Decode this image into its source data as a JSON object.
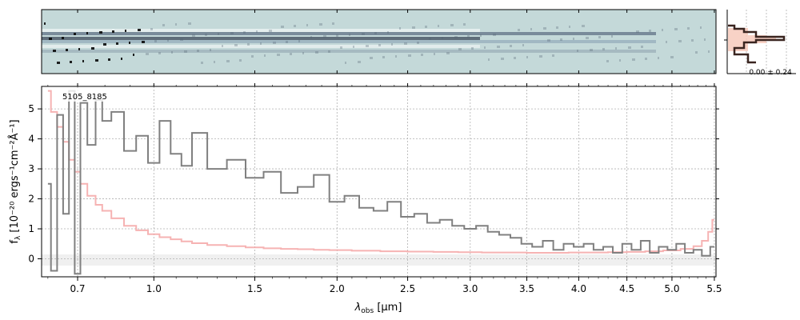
{
  "chart_data": {
    "type": "line",
    "object_label": "5105_8185",
    "xlabel_main": "λ",
    "xlabel_sub": "obs",
    "xlabel_unit": "[μm]",
    "ylabel_main": "f",
    "ylabel_sub": "λ",
    "ylabel_unit": "[10⁻²⁰ ergs⁻¹cm⁻²Å⁻¹]",
    "x_ticks": [
      "0.7",
      "1.0",
      "1.5",
      "2.0",
      "2.5",
      "3.0",
      "3.5",
      "4.0",
      "4.5",
      "5.0",
      "5.5"
    ],
    "x_tick_values": [
      0.7,
      1.0,
      1.5,
      2.0,
      2.5,
      3.0,
      3.5,
      4.0,
      4.5,
      5.0,
      5.5
    ],
    "y_ticks": [
      "0",
      "1",
      "2",
      "3",
      "4",
      "5"
    ],
    "ylim": [
      -0.6,
      5.75
    ],
    "x_scale": "power-law compressed (prism resolution grid)",
    "grid": true,
    "hist_label": "0.00 ± 0.24",
    "colors": {
      "flux": "#808080",
      "error": "#f4a6a6",
      "image": "#c4d9d9",
      "hist": "#6b3a2a",
      "hist_fill": "#f6c7b8"
    },
    "series": [
      {
        "role": "flux",
        "x": [
          0.6,
          0.62,
          0.64,
          0.66,
          0.68,
          0.7,
          0.72,
          0.75,
          0.78,
          0.8,
          0.85,
          0.9,
          0.95,
          1.0,
          1.05,
          1.1,
          1.15,
          1.2,
          1.3,
          1.4,
          1.5,
          1.6,
          1.7,
          1.8,
          1.9,
          2.0,
          2.1,
          2.2,
          2.3,
          2.4,
          2.5,
          2.6,
          2.7,
          2.8,
          2.9,
          3.0,
          3.1,
          3.2,
          3.3,
          3.4,
          3.5,
          3.6,
          3.7,
          3.8,
          3.9,
          4.0,
          4.1,
          4.2,
          4.3,
          4.4,
          4.5,
          4.6,
          4.7,
          4.8,
          4.9,
          5.0,
          5.1,
          5.2,
          5.3,
          5.4,
          5.5
        ],
        "y": [
          2.5,
          -0.4,
          4.8,
          1.5,
          5.6,
          -0.5,
          5.2,
          3.8,
          5.3,
          4.6,
          4.9,
          3.6,
          4.1,
          3.2,
          4.6,
          3.5,
          3.1,
          4.2,
          3.0,
          3.3,
          2.7,
          2.9,
          2.2,
          2.4,
          2.8,
          1.9,
          2.1,
          1.7,
          1.6,
          1.9,
          1.4,
          1.5,
          1.2,
          1.3,
          1.1,
          1.0,
          1.1,
          0.9,
          0.8,
          0.7,
          0.5,
          0.4,
          0.6,
          0.3,
          0.5,
          0.4,
          0.5,
          0.3,
          0.4,
          0.2,
          0.5,
          0.3,
          0.6,
          0.2,
          0.4,
          0.3,
          0.5,
          0.2,
          0.3,
          0.1,
          0.4
        ]
      },
      {
        "role": "error",
        "x": [
          0.6,
          0.62,
          0.64,
          0.66,
          0.68,
          0.7,
          0.72,
          0.75,
          0.78,
          0.8,
          0.85,
          0.9,
          0.95,
          1.0,
          1.05,
          1.1,
          1.15,
          1.2,
          1.3,
          1.4,
          1.5,
          1.6,
          1.7,
          1.8,
          1.9,
          2.0,
          2.2,
          2.4,
          2.6,
          2.8,
          3.0,
          3.2,
          3.4,
          3.6,
          3.8,
          4.0,
          4.2,
          4.4,
          4.6,
          4.8,
          5.0,
          5.2,
          5.3,
          5.4,
          5.45,
          5.5
        ],
        "y": [
          5.6,
          4.9,
          4.4,
          3.9,
          3.3,
          2.9,
          2.5,
          2.1,
          1.8,
          1.6,
          1.35,
          1.1,
          0.95,
          0.82,
          0.72,
          0.65,
          0.58,
          0.52,
          0.46,
          0.42,
          0.38,
          0.35,
          0.33,
          0.32,
          0.3,
          0.29,
          0.27,
          0.25,
          0.24,
          0.23,
          0.22,
          0.21,
          0.21,
          0.2,
          0.2,
          0.21,
          0.21,
          0.22,
          0.23,
          0.25,
          0.28,
          0.33,
          0.42,
          0.6,
          0.9,
          1.3
        ]
      }
    ]
  }
}
